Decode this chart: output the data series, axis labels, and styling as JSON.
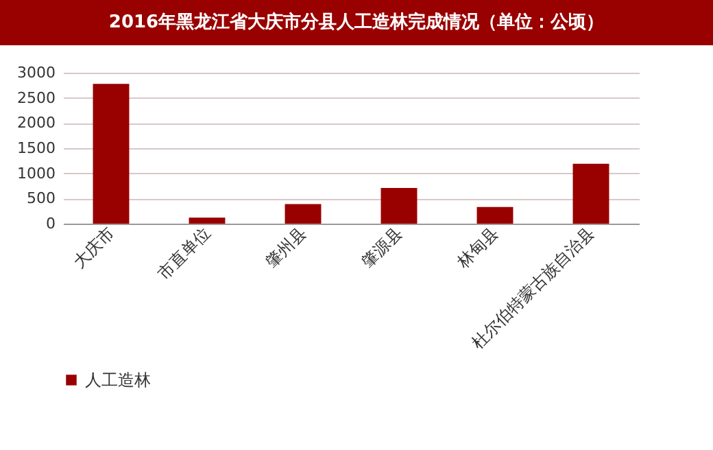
{
  "chart_data": {
    "type": "bar",
    "title": "2016年黑龙江省大庆市分县人工造林完成情况（单位：公顷）",
    "categories": [
      "大庆市",
      "市直单位",
      "肇州县",
      "肇源县",
      "林甸县",
      "杜尔伯特蒙古族自治县"
    ],
    "series": [
      {
        "name": "人工造林",
        "color": "#990000",
        "values": [
          2780,
          120,
          390,
          710,
          330,
          1190
        ]
      }
    ],
    "ylim": [
      0,
      3000
    ],
    "yticks": [
      0,
      500,
      1000,
      1500,
      2000,
      2500,
      3000
    ],
    "grid": "y",
    "legend": "bottom"
  }
}
